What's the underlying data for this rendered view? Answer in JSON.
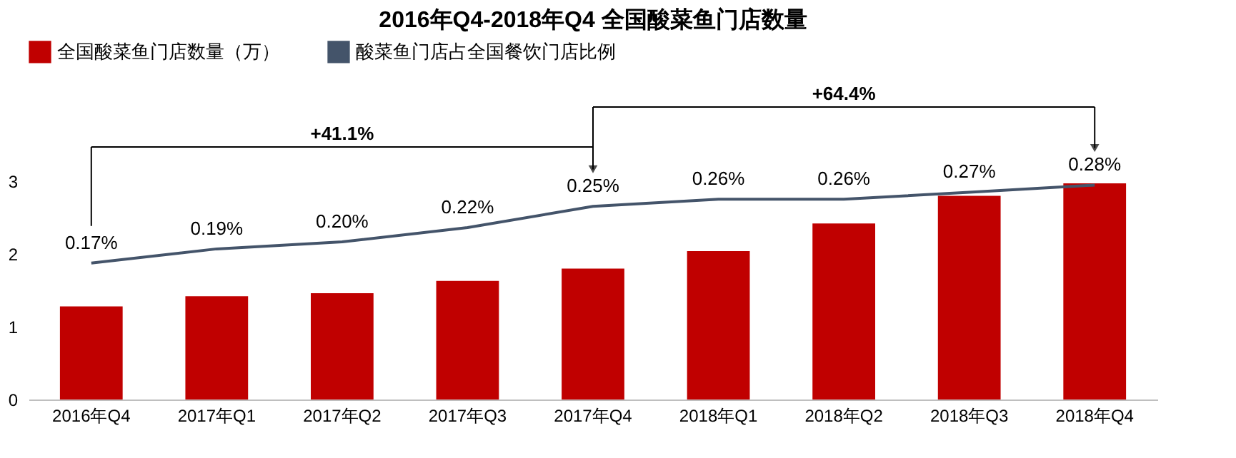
{
  "chart_data": {
    "type": "bar",
    "title": "2016年Q4-2018年Q4 全国酸菜鱼门店数量",
    "categories": [
      "2016年Q4",
      "2017年Q1",
      "2017年Q2",
      "2017年Q3",
      "2017年Q4",
      "2018年Q1",
      "2018年Q2",
      "2018年Q3",
      "2018年Q4"
    ],
    "series": [
      {
        "name": "全国酸菜鱼门店数量（万）",
        "color": "#c00000",
        "values": [
          1.28,
          1.42,
          1.46,
          1.63,
          1.8,
          2.04,
          2.42,
          2.8,
          2.97
        ]
      },
      {
        "name": "酸菜鱼门店占全国餐饮门店比例",
        "type": "line",
        "axis": "y2",
        "color": "#44546a",
        "values": [
          0.17,
          0.19,
          0.2,
          0.22,
          0.25,
          0.26,
          0.26,
          0.27,
          0.28
        ],
        "value_labels": [
          "0.17%",
          "0.19%",
          "0.20%",
          "0.22%",
          "0.25%",
          "0.26%",
          "0.26%",
          "0.27%",
          "0.28%"
        ]
      }
    ],
    "ylim": [
      0,
      3
    ],
    "yticks": [
      0,
      1,
      2,
      3
    ],
    "grid": false,
    "legend": "top",
    "annotations": [
      "+41.1%",
      "+64.4%"
    ]
  }
}
